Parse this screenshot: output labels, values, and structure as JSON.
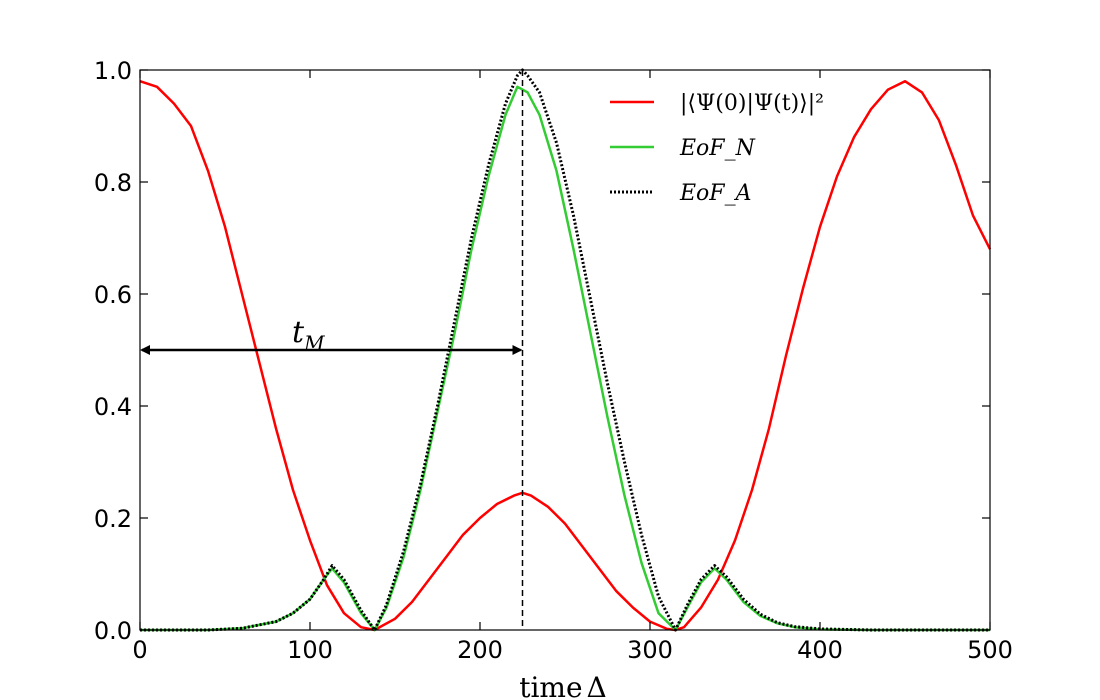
{
  "chart_data": {
    "type": "line",
    "title": "",
    "xlabel": "time",
    "xlabel_symbol": "Δ",
    "ylabel": "",
    "xlim": [
      0,
      500
    ],
    "ylim": [
      0,
      1.0
    ],
    "xticks": [
      0,
      100,
      200,
      300,
      400,
      500
    ],
    "xtick_labels": [
      "0",
      "100",
      "200",
      "300",
      "400",
      "500"
    ],
    "yticks": [
      0,
      0.2,
      0.4,
      0.6,
      0.8,
      1.0
    ],
    "ytick_labels": [
      "0.0",
      "0.2",
      "0.4",
      "0.6",
      "0.8",
      "1.0"
    ],
    "grid": false,
    "legend_position": "top-right",
    "series": [
      {
        "name": "|⟨Ψ(0)|Ψ(t)⟩|²",
        "color": "#ff0000",
        "style": "solid",
        "x": [
          0,
          10,
          20,
          30,
          40,
          50,
          60,
          70,
          80,
          90,
          100,
          110,
          120,
          130,
          138,
          150,
          160,
          170,
          180,
          190,
          200,
          210,
          220,
          225,
          230,
          240,
          250,
          260,
          270,
          280,
          290,
          300,
          310,
          315,
          320,
          330,
          340,
          350,
          360,
          370,
          380,
          390,
          400,
          410,
          420,
          430,
          440,
          450,
          460,
          470,
          480,
          490,
          500
        ],
        "y": [
          0.98,
          0.97,
          0.94,
          0.9,
          0.82,
          0.72,
          0.6,
          0.48,
          0.36,
          0.25,
          0.16,
          0.08,
          0.03,
          0.005,
          0.0,
          0.02,
          0.05,
          0.09,
          0.13,
          0.17,
          0.2,
          0.225,
          0.24,
          0.245,
          0.24,
          0.22,
          0.19,
          0.15,
          0.11,
          0.07,
          0.04,
          0.015,
          0.002,
          0.0,
          0.005,
          0.04,
          0.09,
          0.16,
          0.25,
          0.36,
          0.49,
          0.61,
          0.72,
          0.81,
          0.88,
          0.93,
          0.965,
          0.98,
          0.96,
          0.91,
          0.83,
          0.74,
          0.68
        ]
      },
      {
        "name": "EoF_N",
        "color": "#33cc33",
        "style": "solid",
        "x": [
          0,
          40,
          60,
          80,
          90,
          100,
          108,
          113,
          120,
          130,
          138,
          145,
          155,
          165,
          175,
          185,
          195,
          205,
          215,
          222,
          228,
          235,
          245,
          255,
          265,
          275,
          285,
          295,
          305,
          315,
          322,
          330,
          338,
          345,
          355,
          365,
          375,
          385,
          400,
          430,
          500
        ],
        "y": [
          0.0,
          0.0,
          0.003,
          0.015,
          0.03,
          0.055,
          0.09,
          0.11,
          0.085,
          0.03,
          0.0,
          0.04,
          0.13,
          0.25,
          0.39,
          0.53,
          0.68,
          0.81,
          0.92,
          0.97,
          0.96,
          0.92,
          0.82,
          0.68,
          0.53,
          0.38,
          0.24,
          0.12,
          0.03,
          0.0,
          0.04,
          0.085,
          0.11,
          0.09,
          0.05,
          0.025,
          0.012,
          0.005,
          0.001,
          0.0,
          0.0
        ]
      },
      {
        "name": "EoF_A",
        "color": "#000000",
        "style": "dotted",
        "x": [
          0,
          40,
          60,
          80,
          90,
          100,
          108,
          113,
          120,
          130,
          138,
          145,
          155,
          165,
          175,
          185,
          195,
          205,
          215,
          222,
          225,
          228,
          235,
          245,
          255,
          265,
          275,
          285,
          295,
          305,
          315,
          322,
          330,
          338,
          345,
          355,
          365,
          375,
          385,
          400,
          430,
          500
        ],
        "y": [
          0.0,
          0.0,
          0.003,
          0.015,
          0.03,
          0.055,
          0.09,
          0.115,
          0.09,
          0.035,
          0.0,
          0.045,
          0.14,
          0.26,
          0.4,
          0.55,
          0.7,
          0.83,
          0.94,
          0.99,
          1.0,
          0.99,
          0.96,
          0.87,
          0.74,
          0.59,
          0.44,
          0.3,
          0.17,
          0.06,
          0.0,
          0.045,
          0.09,
          0.115,
          0.095,
          0.055,
          0.028,
          0.013,
          0.006,
          0.002,
          0.0,
          0.0
        ]
      }
    ],
    "annotations": [
      {
        "label": "t",
        "label_subscript": "M",
        "type": "double-arrow",
        "x_start": 0,
        "x_end": 225,
        "y": 0.5
      }
    ],
    "reference_lines": [
      {
        "type": "vertical",
        "x": 225,
        "style": "dashed",
        "color": "#000000"
      }
    ]
  }
}
